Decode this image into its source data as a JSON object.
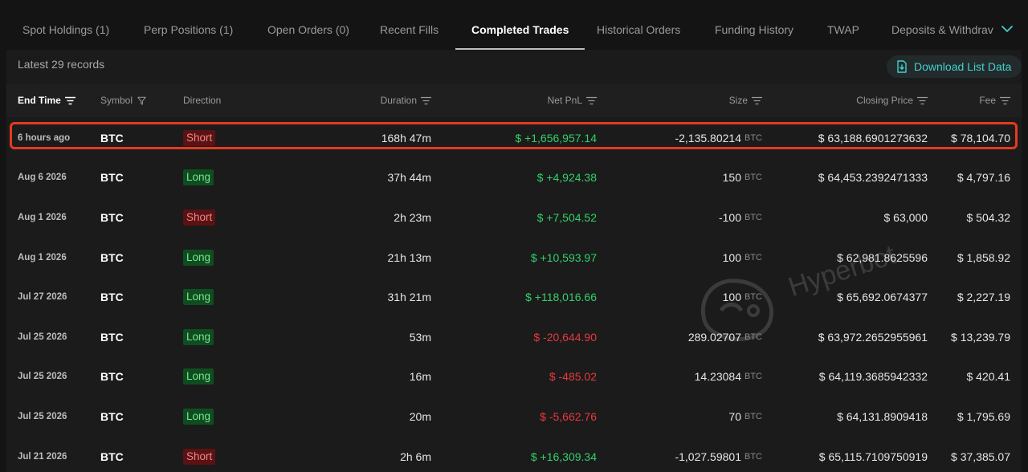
{
  "tabs": [
    {
      "label": "Spot Holdings (1)",
      "active": false
    },
    {
      "label": "Perp Positions (1)",
      "active": false
    },
    {
      "label": "Open Orders (0)",
      "active": false
    },
    {
      "label": "Recent Fills",
      "active": false
    },
    {
      "label": "Completed Trades",
      "active": true
    },
    {
      "label": "Historical Orders",
      "active": false
    },
    {
      "label": "Funding History",
      "active": false
    },
    {
      "label": "TWAP",
      "active": false
    },
    {
      "label": "Deposits & Withdrav",
      "active": false
    }
  ],
  "records_label": "Latest 29 records",
  "download_label": "Download List Data",
  "columns": {
    "end_time": "End Time",
    "symbol": "Symbol",
    "direction": "Direction",
    "duration": "Duration",
    "net_pnl": "Net PnL",
    "size": "Size",
    "closing_price": "Closing Price",
    "fee": "Fee"
  },
  "watermark": "Hyperbot",
  "colors": {
    "accent": "#43d1cc",
    "positive": "#31d16a",
    "negative": "#e8393e",
    "highlight": "#e53a1f"
  },
  "rows": [
    {
      "time": "6 hours ago",
      "symbol": "BTC",
      "direction": "Short",
      "duration": "168h 47m",
      "pnl": "$ +1,656,957.14",
      "pnl_sign": "pos",
      "size": "-2,135.80214",
      "unit": "BTC",
      "close": "$ 63,188.6901273632",
      "fee": "$ 78,104.70"
    },
    {
      "time": "Aug 6 2026",
      "symbol": "BTC",
      "direction": "Long",
      "duration": "37h 44m",
      "pnl": "$ +4,924.38",
      "pnl_sign": "pos",
      "size": "150",
      "unit": "BTC",
      "close": "$ 64,453.2392471333",
      "fee": "$ 4,797.16"
    },
    {
      "time": "Aug 1 2026",
      "symbol": "BTC",
      "direction": "Short",
      "duration": "2h 23m",
      "pnl": "$ +7,504.52",
      "pnl_sign": "pos",
      "size": "-100",
      "unit": "BTC",
      "close": "$ 63,000",
      "fee": "$ 504.32"
    },
    {
      "time": "Aug 1 2026",
      "symbol": "BTC",
      "direction": "Long",
      "duration": "21h 13m",
      "pnl": "$ +10,593.97",
      "pnl_sign": "pos",
      "size": "100",
      "unit": "BTC",
      "close": "$ 62,981.8625596",
      "fee": "$ 1,858.92"
    },
    {
      "time": "Jul 27 2026",
      "symbol": "BTC",
      "direction": "Long",
      "duration": "31h 21m",
      "pnl": "$ +118,016.66",
      "pnl_sign": "pos",
      "size": "100",
      "unit": "BTC",
      "close": "$ 65,692.0674377",
      "fee": "$ 2,227.19"
    },
    {
      "time": "Jul 25 2026",
      "symbol": "BTC",
      "direction": "Long",
      "duration": "53m",
      "pnl": "$ -20,644.90",
      "pnl_sign": "neg",
      "size": "289.02707",
      "unit": "BTC",
      "close": "$ 63,972.2652955961",
      "fee": "$ 13,239.79"
    },
    {
      "time": "Jul 25 2026",
      "symbol": "BTC",
      "direction": "Long",
      "duration": "16m",
      "pnl": "$ -485.02",
      "pnl_sign": "neg",
      "size": "14.23084",
      "unit": "BTC",
      "close": "$ 64,119.3685942332",
      "fee": "$ 420.41"
    },
    {
      "time": "Jul 25 2026",
      "symbol": "BTC",
      "direction": "Long",
      "duration": "20m",
      "pnl": "$ -5,662.76",
      "pnl_sign": "neg",
      "size": "70",
      "unit": "BTC",
      "close": "$ 64,131.8909418",
      "fee": "$ 1,795.69"
    },
    {
      "time": "Jul 21 2026",
      "symbol": "BTC",
      "direction": "Short",
      "duration": "2h 6m",
      "pnl": "$ +16,309.34",
      "pnl_sign": "pos",
      "size": "-1,027.59801",
      "unit": "BTC",
      "close": "$ 65,115.7109750919",
      "fee": "$ 37,385.07"
    }
  ]
}
